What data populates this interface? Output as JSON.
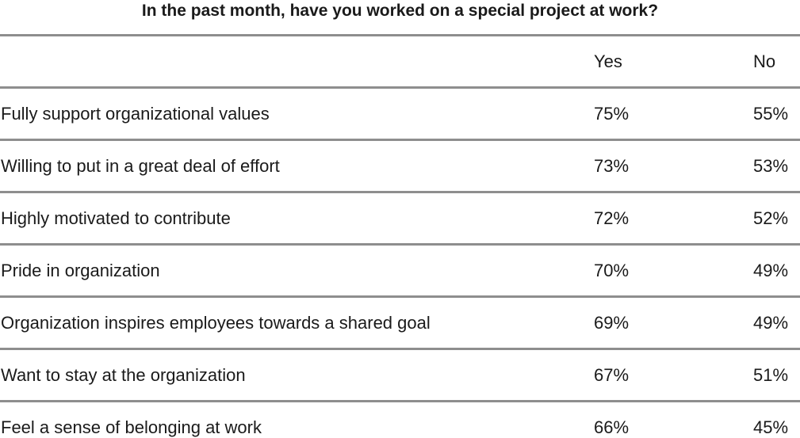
{
  "chart_data": {
    "type": "table",
    "title": "In the past month, have you worked on a special project at work?",
    "columns": [
      "Yes",
      "No"
    ],
    "rows": [
      {
        "label": "Fully support organizational values",
        "yes": "75%",
        "no": "55%"
      },
      {
        "label": "Willing to put in a great deal of effort",
        "yes": "73%",
        "no": "53%"
      },
      {
        "label": "Highly motivated to contribute",
        "yes": "72%",
        "no": "52%"
      },
      {
        "label": "Pride in organization",
        "yes": "70%",
        "no": "49%"
      },
      {
        "label": "Organization inspires employees towards a shared goal",
        "yes": "69%",
        "no": "49%"
      },
      {
        "label": "Want to stay at the organization",
        "yes": "67%",
        "no": "51%"
      },
      {
        "label": "Feel a sense of belonging at work",
        "yes": "66%",
        "no": "45%"
      }
    ]
  }
}
